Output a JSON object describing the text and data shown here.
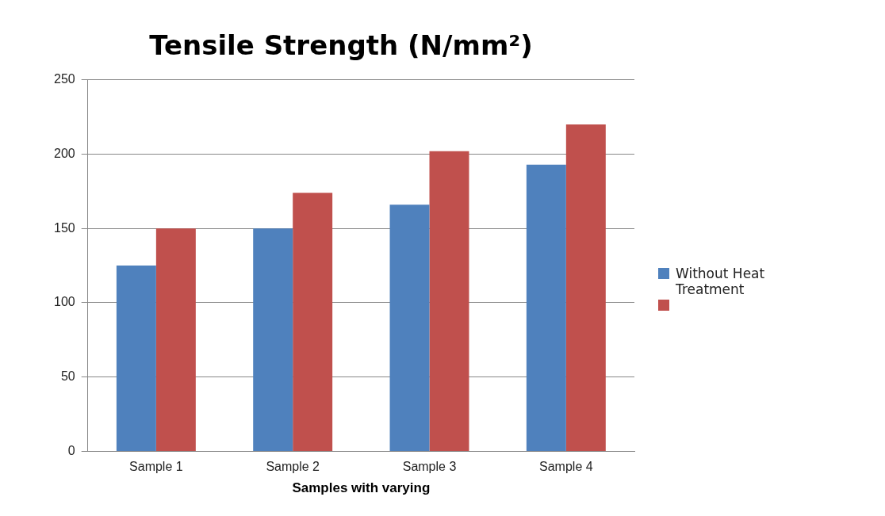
{
  "chart_data": {
    "type": "bar",
    "title": "Tensile Strength (N/mm²)",
    "xlabel": "Samples with varying",
    "categories": [
      "Sample 1",
      "Sample 2",
      "Sample 3",
      "Sample 4"
    ],
    "series": [
      {
        "name": "Without Heat Treatment",
        "color": "#4f81bd",
        "values": [
          125,
          150,
          166,
          193
        ]
      },
      {
        "color": "#c0504d",
        "values": [
          150,
          174,
          202,
          220
        ]
      }
    ],
    "ylim": [
      0,
      250
    ],
    "yticks": [
      0,
      50,
      100,
      150,
      200,
      250
    ],
    "grid": "y",
    "legend": "right"
  }
}
